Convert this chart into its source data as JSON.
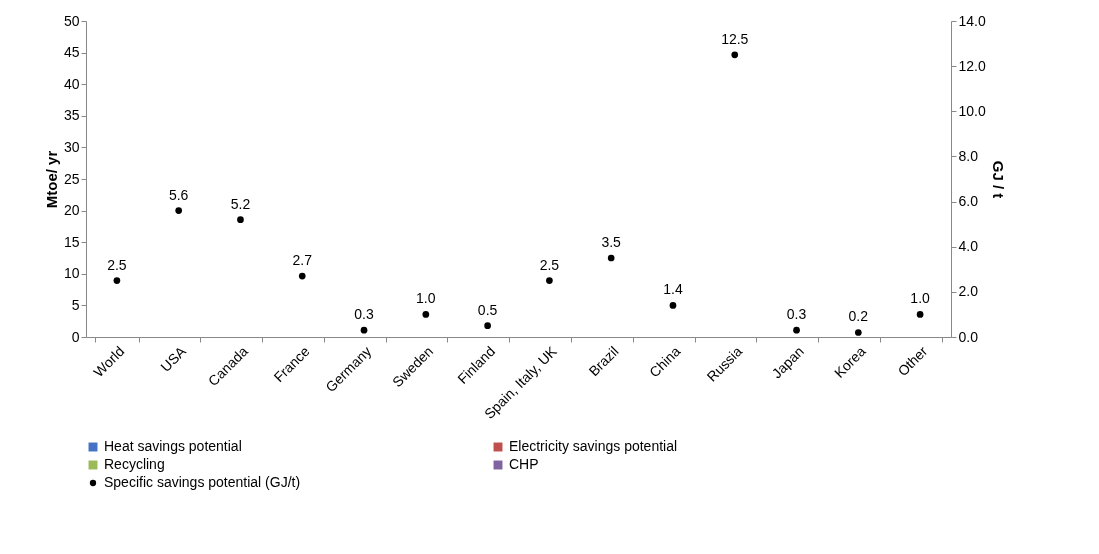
{
  "chart_data": {
    "type": "bar",
    "ylabel": "Mtoe/ yr",
    "y2label": "GJ / t",
    "categories": [
      "World",
      "USA",
      "Canada",
      "France",
      "Germany",
      "Sweden",
      "Finland",
      "Spain, Italy, UK",
      "Brazil",
      "China",
      "Russia",
      "Japan",
      "Korea",
      "Other"
    ],
    "series": [
      {
        "name": "Heat savings potential",
        "color": "#4472c4",
        "values": [
          null,
          null,
          null,
          null,
          null,
          null,
          null,
          null,
          null,
          null,
          null,
          null,
          null,
          null
        ]
      },
      {
        "name": "Electricity savings potential",
        "color": "#c0504d",
        "values": [
          null,
          null,
          null,
          null,
          null,
          null,
          null,
          null,
          null,
          null,
          null,
          null,
          null,
          null
        ]
      },
      {
        "name": "Recycling",
        "color": "#9bbb59",
        "values": [
          null,
          null,
          null,
          null,
          null,
          null,
          null,
          null,
          null,
          null,
          null,
          null,
          null,
          null
        ]
      },
      {
        "name": "CHP",
        "color": "#8064a2",
        "values": [
          null,
          null,
          null,
          null,
          null,
          null,
          null,
          null,
          null,
          null,
          null,
          null,
          null,
          null
        ]
      },
      {
        "name": "Specific savings potential (GJ/t)",
        "type": "scatter",
        "axis": "y2",
        "color": "#000000",
        "marker": "circle",
        "value_labels": [
          "2.5",
          "5.6",
          "5.2",
          "2.7",
          "0.3",
          "1.0",
          "0.5",
          "2.5",
          "3.5",
          "1.4",
          "12.5",
          "0.3",
          "0.2",
          "1.0"
        ],
        "values": [
          2.5,
          5.6,
          5.2,
          2.7,
          0.3,
          1.0,
          0.5,
          2.5,
          3.5,
          1.4,
          12.5,
          0.3,
          0.2,
          1.0
        ]
      }
    ],
    "ylim": [
      0,
      50
    ],
    "yticks": [
      0,
      5,
      10,
      15,
      20,
      25,
      30,
      35,
      40,
      45,
      50
    ],
    "y2lim": [
      0,
      14
    ],
    "y2ticks": [
      {
        "value": 0,
        "label": "0.0"
      },
      {
        "value": 2,
        "label": "2.0"
      },
      {
        "value": 4,
        "label": "4.0"
      },
      {
        "value": 6,
        "label": "6.0"
      },
      {
        "value": 8,
        "label": "8.0"
      },
      {
        "value": 10,
        "label": "10.0"
      },
      {
        "value": 12,
        "label": "12.0"
      },
      {
        "value": 14,
        "label": "14.0"
      }
    ],
    "grid": false,
    "legend": "bottom"
  }
}
